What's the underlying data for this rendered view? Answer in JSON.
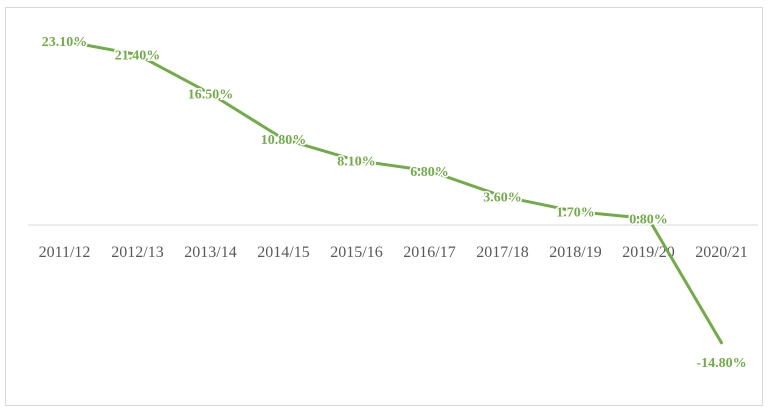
{
  "chart_data": {
    "type": "line",
    "title": "",
    "xlabel": "",
    "ylabel": "",
    "categories": [
      "2011/12",
      "2012/13",
      "2013/14",
      "2014/15",
      "2015/16",
      "2016/17",
      "2017/18",
      "2018/19",
      "2019/20",
      "2020/21"
    ],
    "series": [
      {
        "values": [
          23.1,
          21.4,
          16.5,
          10.8,
          8.1,
          6.8,
          3.6,
          1.7,
          0.8,
          -14.8
        ],
        "labels": [
          "23.10%",
          "21.40%",
          "16.50%",
          "10.80%",
          "8.10%",
          "6.80%",
          "3.60%",
          "1.70%",
          "0.80%",
          "-14.80%"
        ],
        "color": "#70ad47"
      }
    ],
    "ylim": [
      -16,
      25
    ],
    "grid": false,
    "legend": "none"
  }
}
